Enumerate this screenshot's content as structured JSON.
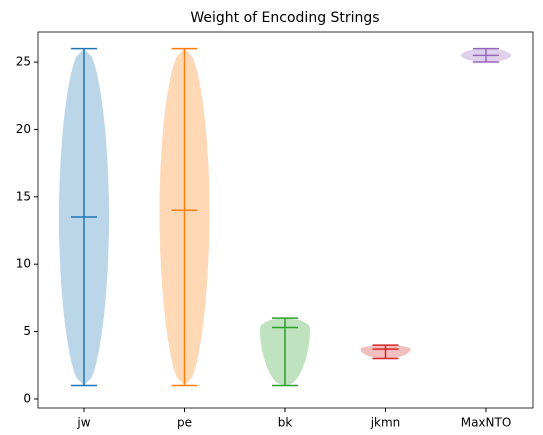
{
  "chart_data": {
    "type": "violin",
    "title": "Weight of Encoding Strings",
    "categories": [
      "jw",
      "pe",
      "bk",
      "jkmn",
      "MaxNTO"
    ],
    "colors": [
      "#1f77b4",
      "#ff7f0e",
      "#2ca02c",
      "#d62728",
      "#9467bd"
    ],
    "min": [
      1,
      1,
      1,
      3,
      25
    ],
    "mean": [
      13.5,
      14,
      5.3,
      3.7,
      25.5
    ],
    "max": [
      26,
      26,
      6,
      4,
      26
    ],
    "ylim": [
      -0.67,
      27.23
    ],
    "yticks": [
      0,
      5,
      10,
      15,
      20,
      25
    ]
  }
}
